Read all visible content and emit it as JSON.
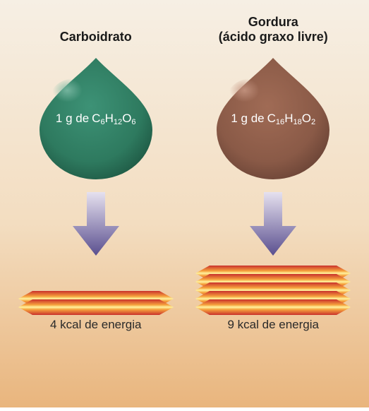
{
  "background": {
    "top_color": "#f6efe4",
    "mid_color": "#f3ddc0",
    "bottom_color": "#e9b57d"
  },
  "columns": [
    {
      "id": "carb",
      "title_line1": "Carboidrato",
      "title_line2": "",
      "title_fontsize": 18,
      "title_color": "#1a1a1a",
      "drop": {
        "fill_top": "#2e7a5f",
        "fill_bottom": "#3d9276",
        "highlight": "#7ab9a3",
        "shadow": "#1f5a45",
        "label_prefix": "1 g de",
        "formula_base": "C",
        "formula_parts": [
          {
            "main": "C",
            "sub": "6"
          },
          {
            "main": "H",
            "sub": "12"
          },
          {
            "main": "O",
            "sub": "6"
          }
        ],
        "label_color": "#ffffff"
      },
      "arrow": {
        "top_color": "#e6e1ef",
        "bottom_color": "#5a4f8f"
      },
      "energy": {
        "slab_count": 2,
        "slab_height": 22,
        "colors": {
          "light": "#fff3a0",
          "mid": "#f6a23c",
          "dark": "#c9302c"
        },
        "label": "4 kcal de energia",
        "label_color": "#2a2a2a"
      }
    },
    {
      "id": "fat",
      "title_line1": "Gordura",
      "title_line2": "(ácido graxo livre)",
      "title_fontsize": 18,
      "title_color": "#1a1a1a",
      "drop": {
        "fill_top": "#8a5a47",
        "fill_bottom": "#a06b55",
        "highlight": "#c49480",
        "shadow": "#6b4436",
        "label_prefix": "1 g de",
        "formula_parts": [
          {
            "main": "C",
            "sub": "16"
          },
          {
            "main": "H",
            "sub": "18"
          },
          {
            "main": "O",
            "sub": "2"
          }
        ],
        "label_color": "#ffffff"
      },
      "arrow": {
        "top_color": "#e6e1ef",
        "bottom_color": "#5a4f8f"
      },
      "energy": {
        "slab_count": 5,
        "slab_height": 22,
        "colors": {
          "light": "#fff3a0",
          "mid": "#f6a23c",
          "dark": "#c9302c"
        },
        "label": "9 kcal de energia",
        "label_color": "#2a2a2a"
      }
    }
  ]
}
